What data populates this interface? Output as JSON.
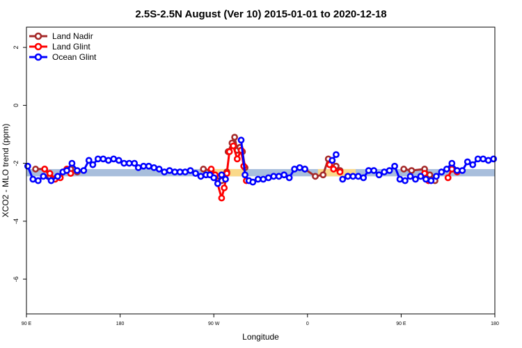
{
  "chart_data": {
    "type": "line",
    "title": "2.5S-2.5N August (Ver 10)   2015-01-01 to 2020-12-18",
    "xlabel": "Longitude",
    "ylabel": "XCO2 - MLO trend (ppm)",
    "xlim": [
      90,
      450
    ],
    "ylim": [
      -7.2,
      2.7
    ],
    "x_ticks": [
      {
        "value": 90,
        "label": "90 E"
      },
      {
        "value": 162,
        "label": "180"
      },
      {
        "value": 234,
        "label": "90 W"
      },
      {
        "value": 306,
        "label": "0"
      },
      {
        "value": 378,
        "label": "90 E"
      },
      {
        "value": 450,
        "label": "180"
      }
    ],
    "y_ticks": [
      2,
      0,
      -2,
      -4,
      -6
    ],
    "legend_position": "top-left",
    "band": {
      "y_low": -2.45,
      "y_high": -2.2,
      "color": "#a8bedc",
      "highlight_color": "#fad98a",
      "highlight_ranges": [
        [
          234,
          258
        ],
        [
          314,
          343
        ]
      ]
    },
    "series": [
      {
        "name": "Land Nadir",
        "color": "#a52a2a",
        "segments": [
          [
            [
              97,
              -2.2
            ],
            [
              104,
              -2.2
            ],
            [
              108,
              -2.45
            ],
            [
              110,
              -2.55
            ],
            [
              113,
              -2.5
            ]
          ],
          [
            [
              124,
              -2.2
            ],
            [
              129,
              -2.3
            ]
          ],
          [
            [
              226,
              -2.2
            ],
            [
              232,
              -2.25
            ],
            [
              235,
              -2.45
            ],
            [
              240,
              -2.6
            ],
            [
              244,
              -2.3
            ]
          ],
          [
            [
              245,
              -1.6
            ],
            [
              248,
              -1.3
            ],
            [
              250,
              -1.1
            ],
            [
              252,
              -1.55
            ],
            [
              254,
              -1.45
            ],
            [
              256,
              -1.6
            ],
            [
              258,
              -2.15
            ]
          ],
          [
            [
              304,
              -2.2
            ],
            [
              312,
              -2.45
            ],
            [
              318,
              -2.4
            ],
            [
              322,
              -1.85
            ],
            [
              325,
              -2.05
            ],
            [
              328,
              -2.1
            ],
            [
              331,
              -2.25
            ]
          ],
          [
            [
              380,
              -2.2
            ],
            [
              386,
              -2.25
            ],
            [
              396,
              -2.2
            ],
            [
              400,
              -2.4
            ],
            [
              404,
              -2.6
            ]
          ],
          [
            [
              418,
              -2.2
            ],
            [
              421,
              -2.25
            ]
          ]
        ]
      },
      {
        "name": "Land Glint",
        "color": "#ff0000",
        "segments": [
          [
            [
              104,
              -2.2
            ],
            [
              108,
              -2.35
            ],
            [
              112,
              -2.55
            ],
            [
              116,
              -2.5
            ],
            [
              121,
              -2.2
            ],
            [
              124,
              -2.35
            ]
          ],
          [
            [
              232,
              -2.2
            ],
            [
              235,
              -2.4
            ],
            [
              240,
              -3.2
            ],
            [
              242,
              -2.85
            ],
            [
              244,
              -2.35
            ],
            [
              246,
              -1.6
            ],
            [
              249,
              -1.4
            ],
            [
              252,
              -1.85
            ],
            [
              255,
              -1.55
            ],
            [
              257,
              -2.1
            ],
            [
              259,
              -2.6
            ]
          ],
          [
            [
              323,
              -2.05
            ],
            [
              326,
              -2.2
            ],
            [
              331,
              -2.3
            ]
          ],
          [
            [
              396,
              -2.35
            ],
            [
              399,
              -2.6
            ]
          ],
          [
            [
              414,
              -2.5
            ],
            [
              417,
              -2.2
            ],
            [
              421,
              -2.3
            ]
          ]
        ]
      },
      {
        "name": "Ocean Glint",
        "color": "#0000ff",
        "segments": [
          [
            [
              91,
              -2.1
            ],
            [
              95,
              -2.55
            ],
            [
              99,
              -2.6
            ],
            [
              103,
              -2.45
            ],
            [
              109,
              -2.6
            ],
            [
              114,
              -2.45
            ],
            [
              118,
              -2.3
            ],
            [
              121,
              -2.25
            ],
            [
              125,
              -2.0
            ],
            [
              129,
              -2.25
            ],
            [
              134,
              -2.25
            ],
            [
              138,
              -1.9
            ],
            [
              141,
              -2.05
            ],
            [
              145,
              -1.85
            ],
            [
              149,
              -1.85
            ],
            [
              153,
              -1.9
            ],
            [
              157,
              -1.85
            ],
            [
              161,
              -1.9
            ],
            [
              165,
              -2.0
            ],
            [
              169,
              -2.0
            ],
            [
              173,
              -2.0
            ],
            [
              176,
              -2.15
            ],
            [
              180,
              -2.1
            ],
            [
              184,
              -2.1
            ],
            [
              188,
              -2.15
            ],
            [
              192,
              -2.2
            ],
            [
              196,
              -2.3
            ],
            [
              200,
              -2.25
            ],
            [
              204,
              -2.3
            ],
            [
              208,
              -2.3
            ],
            [
              212,
              -2.3
            ],
            [
              216,
              -2.25
            ],
            [
              220,
              -2.35
            ],
            [
              224,
              -2.45
            ],
            [
              228,
              -2.4
            ],
            [
              231,
              -2.4
            ],
            [
              234,
              -2.5
            ],
            [
              237,
              -2.7
            ],
            [
              240,
              -2.4
            ],
            [
              243,
              -2.55
            ]
          ],
          [
            [
              255,
              -1.2
            ],
            [
              258,
              -2.4
            ],
            [
              261,
              -2.6
            ],
            [
              264,
              -2.65
            ],
            [
              268,
              -2.55
            ],
            [
              272,
              -2.55
            ],
            [
              276,
              -2.5
            ],
            [
              280,
              -2.45
            ],
            [
              284,
              -2.45
            ],
            [
              288,
              -2.4
            ],
            [
              292,
              -2.5
            ],
            [
              296,
              -2.2
            ],
            [
              300,
              -2.15
            ],
            [
              304,
              -2.2
            ]
          ],
          [
            [
              325,
              -1.9
            ],
            [
              328,
              -1.7
            ]
          ],
          [
            [
              333,
              -2.55
            ],
            [
              337,
              -2.45
            ],
            [
              341,
              -2.45
            ],
            [
              345,
              -2.45
            ],
            [
              349,
              -2.5
            ],
            [
              353,
              -2.25
            ],
            [
              357,
              -2.25
            ],
            [
              361,
              -2.4
            ],
            [
              365,
              -2.3
            ],
            [
              369,
              -2.25
            ],
            [
              373,
              -2.1
            ],
            [
              377,
              -2.55
            ],
            [
              381,
              -2.6
            ],
            [
              385,
              -2.45
            ],
            [
              389,
              -2.55
            ],
            [
              393,
              -2.45
            ],
            [
              397,
              -2.55
            ],
            [
              401,
              -2.6
            ],
            [
              405,
              -2.45
            ],
            [
              409,
              -2.3
            ],
            [
              413,
              -2.2
            ],
            [
              417,
              -2.0
            ],
            [
              421,
              -2.25
            ],
            [
              425,
              -2.25
            ],
            [
              429,
              -1.95
            ],
            [
              433,
              -2.05
            ],
            [
              437,
              -1.85
            ],
            [
              441,
              -1.85
            ],
            [
              445,
              -1.9
            ],
            [
              449,
              -1.85
            ]
          ]
        ]
      }
    ]
  }
}
